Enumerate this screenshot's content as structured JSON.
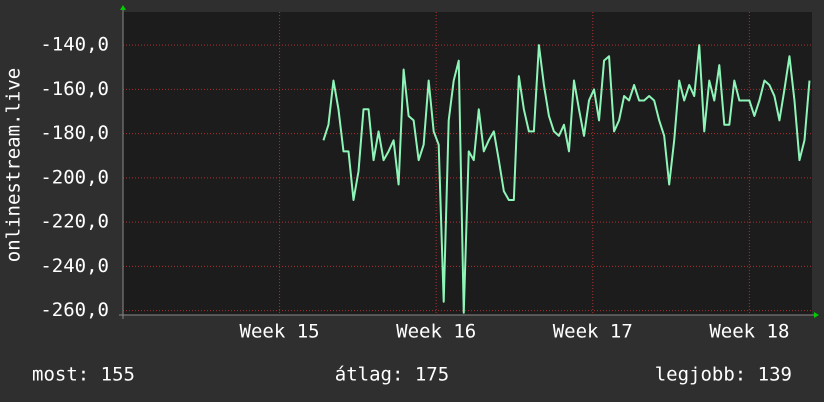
{
  "chart_data": {
    "type": "line",
    "y_label": "onlinestream.live",
    "x": [
      15.28,
      15.312,
      15.344,
      15.376,
      15.408,
      15.44,
      15.472,
      15.504,
      15.536,
      15.568,
      15.6,
      15.632,
      15.664,
      15.696,
      15.728,
      15.76,
      15.792,
      15.824,
      15.856,
      15.888,
      15.92,
      15.952,
      15.984,
      16.016,
      16.048,
      16.08,
      16.112,
      16.144,
      16.176,
      16.208,
      16.24,
      16.272,
      16.304,
      16.336,
      16.368,
      16.4,
      16.432,
      16.464,
      16.496,
      16.528,
      16.56,
      16.592,
      16.624,
      16.656,
      16.688,
      16.72,
      16.752,
      16.784,
      16.816,
      16.848,
      16.88,
      16.912,
      16.944,
      16.976,
      17.008,
      17.04,
      17.072,
      17.104,
      17.136,
      17.168,
      17.2,
      17.232,
      17.264,
      17.296,
      17.328,
      17.36,
      17.392,
      17.424,
      17.456,
      17.488,
      17.52,
      17.552,
      17.584,
      17.616,
      17.648,
      17.68,
      17.712,
      17.744,
      17.776,
      17.808,
      17.84,
      17.872,
      17.904,
      17.936,
      17.968,
      18.0,
      18.032,
      18.064,
      18.096,
      18.128,
      18.16,
      18.192,
      18.224,
      18.256,
      18.288,
      18.32,
      18.352,
      18.384
    ],
    "series": [
      {
        "color": "#8ef5b8",
        "values": [
          -183,
          -176,
          -156,
          -169,
          -188,
          -188,
          -210,
          -197,
          -169,
          -169,
          -192,
          -179,
          -192,
          -188,
          -183,
          -203,
          -151,
          -172,
          -174,
          -192,
          -185,
          -156,
          -179,
          -185,
          -256,
          -174,
          -156,
          -147,
          -261,
          -188,
          -192,
          -169,
          -188,
          -183,
          -179,
          -192,
          -206,
          -210,
          -210,
          -154,
          -169,
          -179,
          -179,
          -140,
          -158,
          -172,
          -179,
          -181,
          -176,
          -188,
          -156,
          -169,
          -181,
          -165,
          -160,
          -174,
          -147,
          -145,
          -179,
          -174,
          -163,
          -165,
          -158,
          -165,
          -165,
          -163,
          -165,
          -174,
          -181,
          -203,
          -183,
          -156,
          -165,
          -158,
          -163,
          -140,
          -179,
          -156,
          -165,
          -149,
          -176,
          -176,
          -156,
          -165,
          -165,
          -165,
          -172,
          -165,
          -156,
          -158,
          -163,
          -174,
          -160,
          -145,
          -165,
          -192,
          -183,
          -156
        ]
      }
    ],
    "xlim": [
      14,
      18.4
    ],
    "xticks": [
      {
        "value": 15,
        "label": "Week 15"
      },
      {
        "value": 16,
        "label": "Week 16"
      },
      {
        "value": 17,
        "label": "Week 17"
      },
      {
        "value": 18,
        "label": "Week 18"
      }
    ],
    "ylim": [
      -262,
      -125
    ],
    "yticks": [
      {
        "value": -260,
        "label": "-260,0"
      },
      {
        "value": -240,
        "label": "-240,0"
      },
      {
        "value": -220,
        "label": "-220,0"
      },
      {
        "value": -200,
        "label": "-200,0"
      },
      {
        "value": -180,
        "label": "-180,0"
      },
      {
        "value": -160,
        "label": "-160,0"
      },
      {
        "value": -140,
        "label": "-140,0"
      }
    ],
    "grid": true,
    "footer": [
      "most: 155",
      "átlag: 175",
      "legjobb: 139"
    ]
  }
}
